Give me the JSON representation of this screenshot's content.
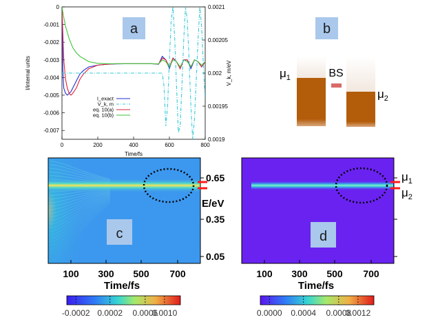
{
  "chart_data": [
    {
      "panel": "a",
      "type": "line",
      "xlabel": "Time/fs",
      "ylabel": "I/internal units",
      "ylabel_right": "V_k, m/eV",
      "xlim": [
        0,
        800
      ],
      "ylim": [
        -0.0075,
        0
      ],
      "ylim_right": [
        0.0019,
        0.0021
      ],
      "x_ticks": [
        "0",
        "200",
        "400",
        "600",
        "800"
      ],
      "y_ticks": [
        "0",
        "-0.001",
        "-0.002",
        "-0.003",
        "-0.004",
        "-0.005",
        "-0.006",
        "-0.007"
      ],
      "y_ticks_right": [
        "0.0021",
        "0.00205",
        "0.002",
        "0.00195",
        "0.0019"
      ],
      "legend": [
        "I_exact",
        "V_k, m",
        "eq. 10(a)",
        "eq. 10(b)"
      ],
      "colors": [
        "#1f2fd6",
        "#34c9d6",
        "#e0203a",
        "#3fc23a"
      ],
      "series": [
        {
          "name": "I_exact",
          "x": [
            0,
            5,
            10,
            20,
            30,
            40,
            50,
            60,
            70,
            80,
            100,
            120,
            150,
            200,
            250,
            300,
            350,
            400,
            450,
            500,
            520,
            540,
            560,
            580,
            600,
            620,
            640,
            660,
            680,
            700,
            720,
            740,
            760,
            780,
            800
          ],
          "y": [
            0,
            -0.0036,
            -0.0046,
            -0.0049,
            -0.005,
            -0.0049,
            -0.0048,
            -0.0046,
            -0.0044,
            -0.0042,
            -0.0038,
            -0.0036,
            -0.0034,
            -0.0033,
            -0.00325,
            -0.00323,
            -0.00322,
            -0.00322,
            -0.00322,
            -0.00322,
            -0.00323,
            -0.00325,
            -0.0028,
            -0.003,
            -0.0035,
            -0.0029,
            -0.0031,
            -0.0035,
            -0.003,
            -0.003,
            -0.0035,
            -0.003,
            -0.0031,
            -0.0034,
            -0.0031
          ]
        },
        {
          "name": "eq. 10(a)",
          "x": [
            0,
            10,
            20,
            30,
            40,
            50,
            60,
            80,
            100,
            120,
            150,
            200,
            250,
            300,
            400,
            500,
            540,
            560,
            580,
            600,
            620,
            640,
            660,
            680,
            700,
            720,
            740,
            760,
            780,
            800
          ],
          "y": [
            0,
            -0.003,
            -0.0041,
            -0.0046,
            -0.0049,
            -0.005,
            -0.0049,
            -0.0046,
            -0.0041,
            -0.0038,
            -0.0035,
            -0.0033,
            -0.00325,
            -0.00322,
            -0.00322,
            -0.00322,
            -0.00323,
            -0.0029,
            -0.003,
            -0.0034,
            -0.0029,
            -0.0031,
            -0.0035,
            -0.003,
            -0.003,
            -0.0034,
            -0.003,
            -0.0031,
            -0.0034,
            -0.0031
          ]
        },
        {
          "name": "eq. 10(b)",
          "x": [
            0,
            10,
            20,
            40,
            60,
            80,
            100,
            150,
            200,
            250,
            300,
            350,
            400,
            500,
            540,
            560,
            580,
            600,
            620,
            640,
            660,
            680,
            700,
            720,
            740,
            760,
            780,
            800
          ],
          "y": [
            0,
            -0.0006,
            -0.0011,
            -0.0018,
            -0.0023,
            -0.0026,
            -0.0028,
            -0.0031,
            -0.0032,
            -0.00322,
            -0.00322,
            -0.00322,
            -0.00322,
            -0.00322,
            -0.00323,
            -0.003,
            -0.0031,
            -0.0034,
            -0.003,
            -0.0031,
            -0.0034,
            -0.003,
            -0.0031,
            -0.0034,
            -0.003,
            -0.0031,
            -0.0033,
            -0.0031
          ]
        },
        {
          "name": "V_k, m",
          "axis": "right",
          "x": [
            0,
            560,
            570,
            580,
            590,
            600,
            610,
            620,
            630,
            640,
            650,
            660,
            670,
            680,
            690,
            700,
            710,
            720,
            730,
            740,
            750,
            760,
            770,
            780,
            790,
            800
          ],
          "y": [
            0.002,
            0.002,
            0.00198,
            0.00192,
            0.00195,
            0.00202,
            0.00208,
            0.0021,
            0.00205,
            0.00198,
            0.00191,
            0.00192,
            0.00198,
            0.00205,
            0.0021,
            0.00208,
            0.00202,
            0.00195,
            0.0019,
            0.00193,
            0.00199,
            0.00205,
            0.0021,
            0.00207,
            0.00201,
            0.00196
          ]
        }
      ]
    },
    {
      "panel": "c",
      "type": "heatmap",
      "xlabel": "Time/fs",
      "ylabel": "E/eV",
      "x_ticks": [
        "100",
        "300",
        "500",
        "700"
      ],
      "y_ticks": [
        "0.65",
        "0.35",
        "0.05"
      ],
      "colorbar_ticks": [
        "-0.0002",
        "0.0002",
        "0.0006",
        "0.0010"
      ]
    },
    {
      "panel": "d",
      "type": "heatmap",
      "xlabel": "Time/fs",
      "x_ticks": [
        "100",
        "300",
        "500",
        "700"
      ],
      "colorbar_ticks": [
        "0.0000",
        "0.0004",
        "0.0008",
        "0.0012"
      ]
    }
  ],
  "panels": {
    "a": "a",
    "b": "b",
    "c": "c",
    "d": "d"
  },
  "schematic": {
    "mu1_base": "μ",
    "mu1_sub": "1",
    "mu2_base": "μ",
    "mu2_sub": "2",
    "bs_label": "BS"
  },
  "side_labels": {
    "mu1_base": "μ",
    "mu1_sub": "1",
    "mu2_base": "μ",
    "mu2_sub": "2"
  },
  "colors": {
    "lead": "#b35c0a",
    "bs": "#d96a6a",
    "marker": "#ff1a1a",
    "panel_box": "#a9c8ec"
  }
}
